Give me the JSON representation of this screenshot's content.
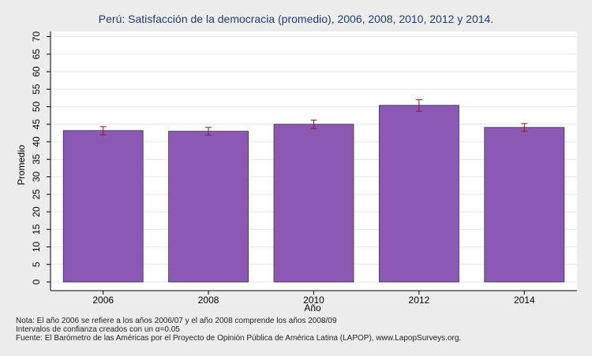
{
  "chart_data": {
    "type": "bar",
    "title": "Perú: Satisfacción de la democracia (promedio), 2006, 2008, 2010, 2012 y 2014.",
    "xlabel": "Año",
    "ylabel": "Promedio",
    "categories": [
      "2006",
      "2008",
      "2010",
      "2012",
      "2014"
    ],
    "values": [
      43.2,
      43.0,
      45.0,
      50.4,
      44.1
    ],
    "ci_low": [
      42.0,
      41.9,
      43.8,
      48.7,
      43.0
    ],
    "ci_high": [
      44.3,
      44.1,
      46.2,
      52.0,
      45.2
    ],
    "ylim": [
      0,
      72
    ],
    "yticks": [
      0,
      5,
      10,
      15,
      20,
      25,
      30,
      35,
      40,
      45,
      50,
      55,
      60,
      65,
      70
    ],
    "grid": true,
    "bar_color": "#8b59b3",
    "errorbar_color": "#8b1c1c"
  },
  "footnotes": {
    "note1": "Nota: El año 2006 se refiere a los años 2006/07 y el año 2008 comprende los años 2008/09",
    "note2": "Intervalos de confianza creados con un α=0.05",
    "source": "Fuente: El Barómetro de las Américas por el Proyecto de Opinión Pública de América Latina (LAPOP), www.LapopSurveys.org."
  }
}
